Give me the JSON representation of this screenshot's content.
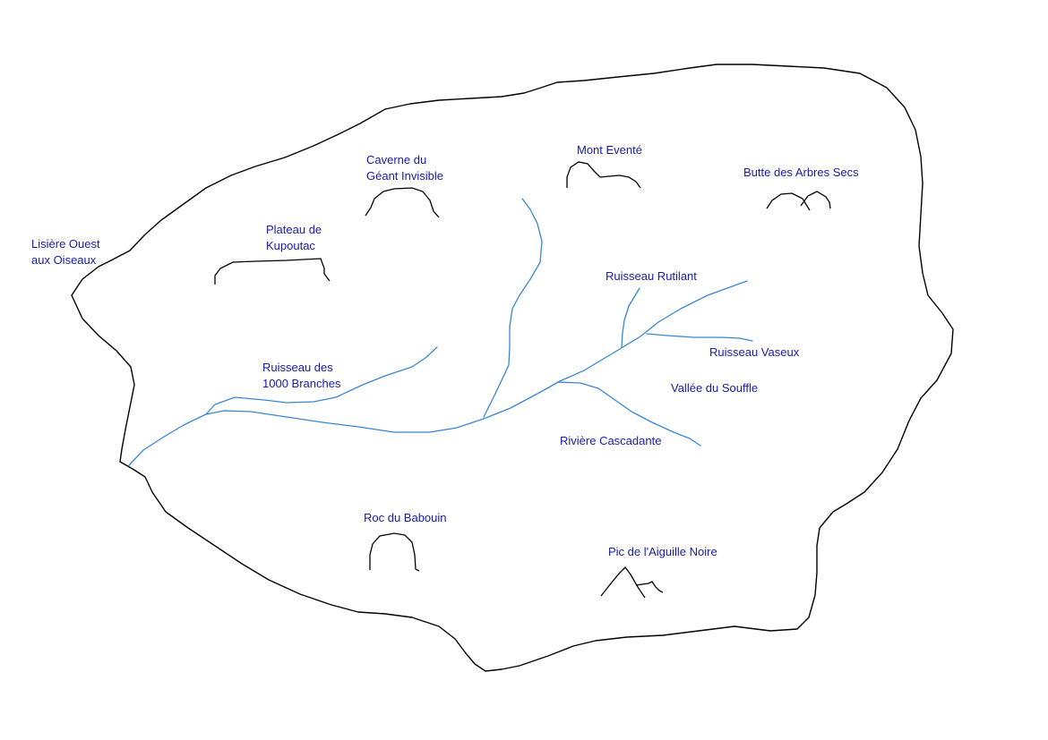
{
  "colors": {
    "background": "#ffffff",
    "outline": "#000000",
    "river": "#3a86d0",
    "label": "#1a1aa6"
  },
  "labels": {
    "lisiere": [
      "Lisière Ouest",
      "aux Oiseaux"
    ],
    "plateau": [
      "Plateau de",
      "Kupoutac"
    ],
    "caverne": [
      "Caverne du",
      "Géant Invisible"
    ],
    "mont": [
      "Mont Eventé"
    ],
    "butte": [
      "Butte des Arbres Secs"
    ],
    "ruisseau_rutilant": [
      "Ruisseau Rutilant"
    ],
    "ruisseau_vaseux": [
      "Ruisseau Vaseux"
    ],
    "vallee": [
      "Vallée du Souffle"
    ],
    "ruisseau_branches": [
      "Ruisseau des",
      "1000 Branches"
    ],
    "riviere": [
      "Rivière Cascadante"
    ],
    "roc": [
      "Roc du Babouin"
    ],
    "pic": [
      "Pic de l'Aiguille Noire"
    ]
  }
}
